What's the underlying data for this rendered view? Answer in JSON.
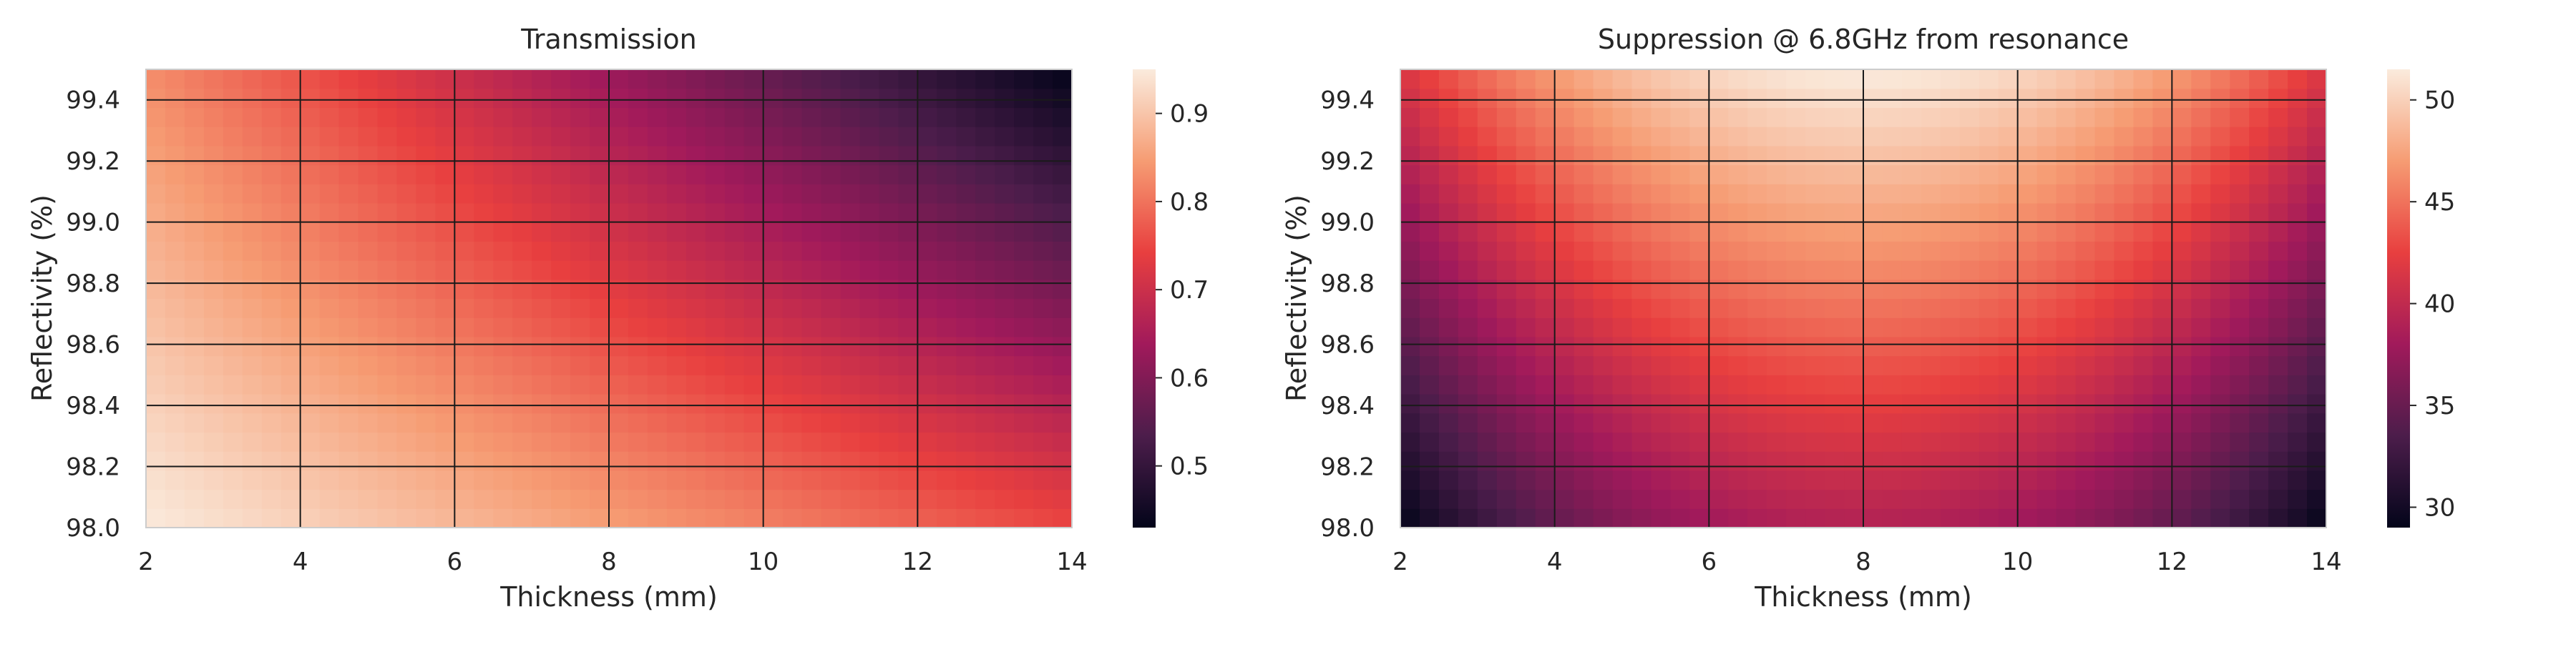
{
  "colormap_stops": [
    "#03051a",
    "#4c1d4b",
    "#a11a5b",
    "#e83f3f",
    "#f69c73",
    "#faebdd"
  ],
  "chart_data": [
    {
      "type": "heatmap",
      "title": "Transmission",
      "xlabel": "Thickness (mm)",
      "ylabel": "Reflectivity (%)",
      "xlim": [
        2,
        14
      ],
      "ylim": [
        98.0,
        99.5
      ],
      "xticks": [
        2,
        4,
        6,
        8,
        10,
        12,
        14
      ],
      "yticks": [
        98.0,
        98.2,
        98.4,
        98.6,
        98.8,
        99.0,
        99.2,
        99.4
      ],
      "xtick_labels": [
        "2",
        "4",
        "6",
        "8",
        "10",
        "12",
        "14"
      ],
      "ytick_labels": [
        "98.0",
        "98.2",
        "98.4",
        "98.6",
        "98.8",
        "99.0",
        "99.2",
        "99.4"
      ],
      "colorbar": {
        "min": 0.43,
        "max": 0.95,
        "ticks": [
          0.5,
          0.6,
          0.7,
          0.8,
          0.9
        ],
        "tick_labels": [
          "0.5",
          "0.6",
          "0.7",
          "0.8",
          "0.9"
        ]
      },
      "grid": true,
      "cells": {
        "nx": 48,
        "ny": 24
      },
      "corner_values": {
        "thickness_2_refl_98.0": 0.95,
        "thickness_14_refl_98.0": 0.75,
        "thickness_2_refl_99.5": 0.83,
        "thickness_14_refl_99.5": 0.43
      }
    },
    {
      "type": "heatmap",
      "title": "Suppression @ 6.8GHz from resonance",
      "xlabel": "Thickness (mm)",
      "ylabel": "Reflectivity (%)",
      "xlim": [
        2,
        14
      ],
      "ylim": [
        98.0,
        99.5
      ],
      "xticks": [
        2,
        4,
        6,
        8,
        10,
        12,
        14
      ],
      "yticks": [
        98.0,
        98.2,
        98.4,
        98.6,
        98.8,
        99.0,
        99.2,
        99.4
      ],
      "xtick_labels": [
        "2",
        "4",
        "6",
        "8",
        "10",
        "12",
        "14"
      ],
      "ytick_labels": [
        "98.0",
        "98.2",
        "98.4",
        "98.6",
        "98.8",
        "99.0",
        "99.2",
        "99.4"
      ],
      "colorbar": {
        "min": 29,
        "max": 51.5,
        "ticks": [
          30,
          35,
          40,
          45,
          50
        ],
        "tick_labels": [
          "30",
          "35",
          "40",
          "45",
          "50"
        ]
      },
      "grid": true,
      "cells": {
        "nx": 48,
        "ny": 24
      },
      "peak": {
        "thickness": 8,
        "reflectivity": 99.5,
        "value": 51.5
      },
      "edge_values": {
        "thickness_2_refl_98.0": 30,
        "thickness_14_refl_98.0": 29,
        "thickness_8_refl_98.0": 39
      }
    }
  ]
}
